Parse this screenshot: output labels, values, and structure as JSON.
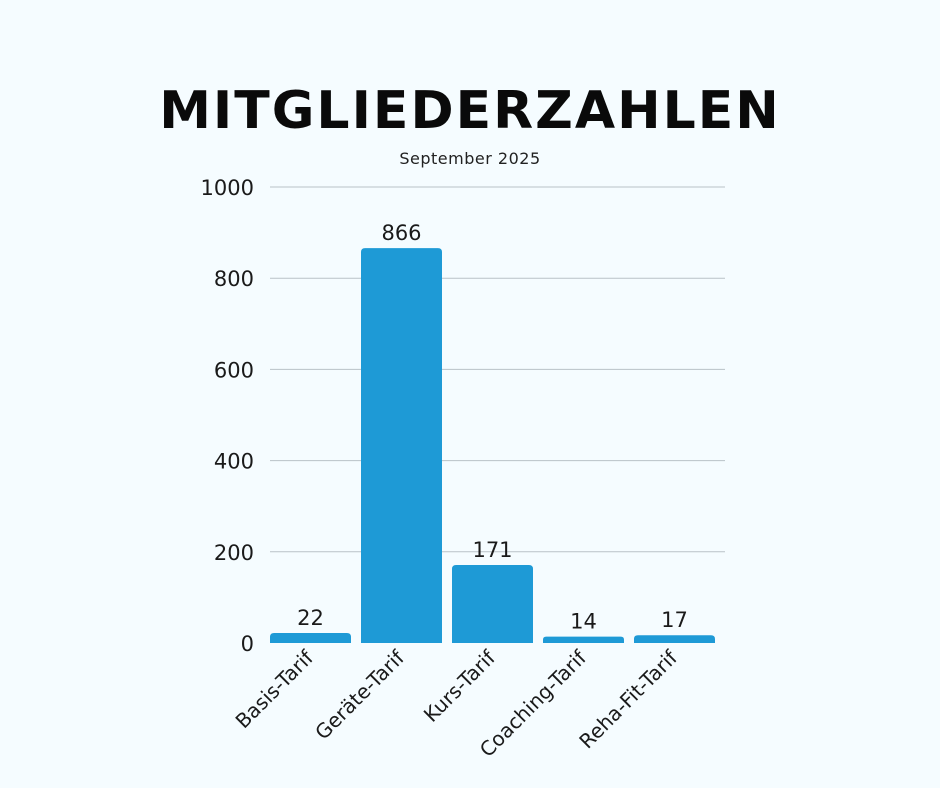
{
  "chart_data": {
    "type": "bar",
    "title": "MITGLIEDERZAHLEN",
    "subtitle": "September 2025",
    "categories": [
      "Basis-Tarif",
      "Geräte-Tarif",
      "Kurs-Tarif",
      "Coaching-Tarif",
      "Reha-Fit-Tarif"
    ],
    "values": [
      22,
      866,
      171,
      14,
      17
    ],
    "data_labels": [
      "22",
      "866",
      "171",
      "14",
      "17"
    ],
    "xlabel": "",
    "ylabel": "",
    "ylim": [
      0,
      1000
    ],
    "yticks": [
      0,
      200,
      400,
      600,
      800,
      1000
    ],
    "ytick_labels": [
      "0",
      "200",
      "400",
      "600",
      "800",
      "1000"
    ],
    "grid": true,
    "legend": "none",
    "colors": {
      "bar": "#1e9ad6",
      "grid": "#b9c2c7",
      "background": "#f5fcff"
    }
  }
}
